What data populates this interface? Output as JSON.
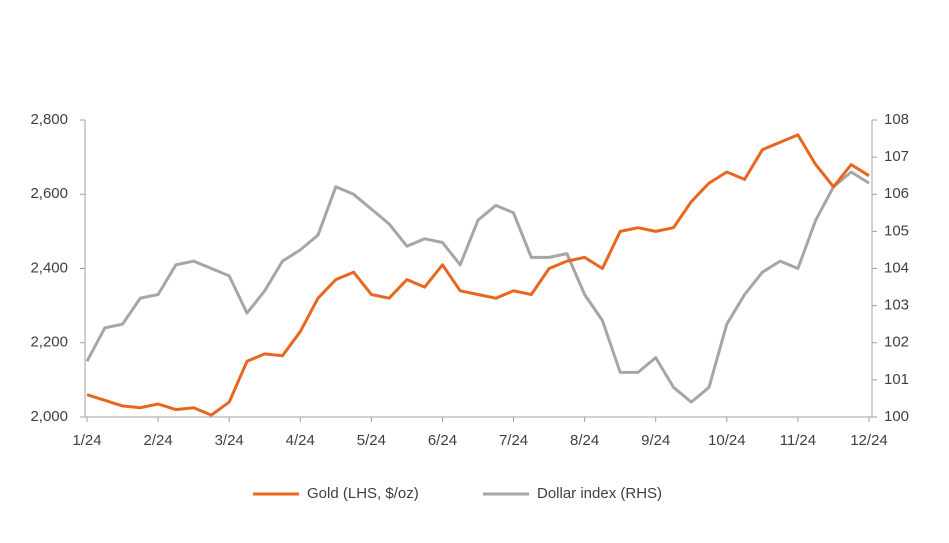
{
  "chart_data": {
    "type": "line",
    "categories": [
      "1/24",
      null,
      null,
      null,
      "2/24",
      null,
      null,
      null,
      "3/24",
      null,
      null,
      null,
      "4/24",
      null,
      null,
      null,
      "5/24",
      null,
      null,
      null,
      "6/24",
      null,
      null,
      null,
      "7/24",
      null,
      null,
      null,
      "8/24",
      null,
      null,
      null,
      "9/24",
      null,
      null,
      null,
      "10/24",
      null,
      null,
      null,
      "11/24",
      null,
      null,
      null,
      "12/24"
    ],
    "series": [
      {
        "name": "Gold (LHS, $/oz)",
        "color": "#e8661f",
        "values": [
          2060,
          2045,
          2030,
          2025,
          2035,
          2020,
          2025,
          2005,
          2040,
          2150,
          2170,
          2165,
          2230,
          2320,
          2370,
          2390,
          2330,
          2320,
          2370,
          2350,
          2410,
          2340,
          2330,
          2320,
          2340,
          2330,
          2400,
          2420,
          2430,
          2400,
          2500,
          2510,
          2500,
          2510,
          2580,
          2630,
          2660,
          2640,
          2720,
          2740,
          2760,
          2680,
          2620,
          2680,
          2650
        ]
      },
      {
        "name": "Dollar index (RHS)",
        "color": "#a6a6a6",
        "axis": "y2",
        "values": [
          101.5,
          102.4,
          102.5,
          103.2,
          103.3,
          104.1,
          104.2,
          104.0,
          103.8,
          102.8,
          103.4,
          104.2,
          104.5,
          104.9,
          106.2,
          106.0,
          105.6,
          105.2,
          104.6,
          104.8,
          104.7,
          104.1,
          105.3,
          105.7,
          105.5,
          104.3,
          104.3,
          104.4,
          103.3,
          102.6,
          101.2,
          101.2,
          101.6,
          100.8,
          100.4,
          100.8,
          102.5,
          103.3,
          103.9,
          104.2,
          104.0,
          105.3,
          106.2,
          106.6,
          106.3
        ]
      }
    ],
    "ylim": [
      2000,
      2800
    ],
    "yticks": [
      {
        "value": 2000,
        "label": "2,000"
      },
      {
        "value": 2200,
        "label": "2,200"
      },
      {
        "value": 2400,
        "label": "2,400"
      },
      {
        "value": 2600,
        "label": "2,600"
      },
      {
        "value": 2800,
        "label": "2,800"
      }
    ],
    "y2lim": [
      100,
      108
    ],
    "y2ticks": [
      100,
      101,
      102,
      103,
      104,
      105,
      106,
      107,
      108
    ],
    "legend": "bottom"
  }
}
